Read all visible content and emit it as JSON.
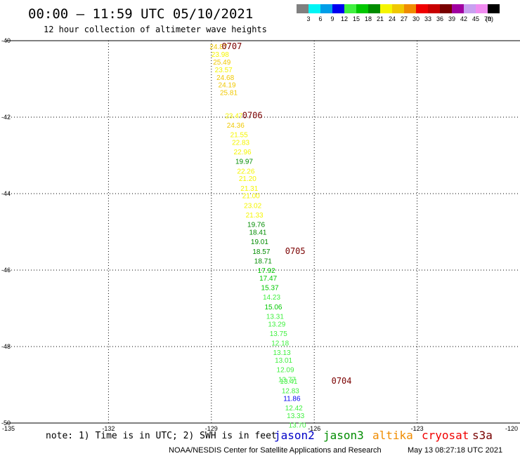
{
  "header": {
    "title": "00:00 – 11:59 UTC 05/10/2021",
    "subtitle": "12 hour collection of altimeter wave heights"
  },
  "colorbar": {
    "unit": "(ft)",
    "bins": [
      {
        "label": "3",
        "color": "#808080"
      },
      {
        "label": "6",
        "color": "#00f5f5"
      },
      {
        "label": "9",
        "color": "#009ee8"
      },
      {
        "label": "12",
        "color": "#0000f0"
      },
      {
        "label": "15",
        "color": "#40f040"
      },
      {
        "label": "18",
        "color": "#00c800"
      },
      {
        "label": "21",
        "color": "#008c00"
      },
      {
        "label": "24",
        "color": "#f5f500"
      },
      {
        "label": "27",
        "color": "#f0c800"
      },
      {
        "label": "30",
        "color": "#f08c00"
      },
      {
        "label": "33",
        "color": "#f00000"
      },
      {
        "label": "36",
        "color": "#c80000"
      },
      {
        "label": "39",
        "color": "#780000"
      },
      {
        "label": "42",
        "color": "#a000a0"
      },
      {
        "label": "45",
        "color": "#c8a0f0"
      },
      {
        "label": "70",
        "color": "#f08cf0"
      },
      {
        "label": "",
        "color": "#000000"
      }
    ]
  },
  "chart_data": {
    "type": "scatter",
    "xlim": [
      -135,
      -120
    ],
    "ylim": [
      -50,
      -40
    ],
    "xticks": [
      -135,
      -132,
      -129,
      -126,
      -123,
      -120
    ],
    "xtick_labels": [
      "-135",
      "-132",
      "-129",
      "-126",
      "-123",
      "-120"
    ],
    "yticks": [
      -40,
      -42,
      -44,
      -46,
      -48,
      -50
    ],
    "ytick_labels": [
      "-40",
      "-42",
      "-44",
      "-46",
      "-48",
      "-50"
    ],
    "grid": true,
    "points": [
      {
        "lon": -129.05,
        "lat": -40.15,
        "label": "24.87",
        "color": "#f0c800"
      },
      {
        "lon": -129.0,
        "lat": -40.35,
        "label": "23.98",
        "color": "#f5f500"
      },
      {
        "lon": -128.95,
        "lat": -40.55,
        "label": "25.49",
        "color": "#f0c800"
      },
      {
        "lon": -128.9,
        "lat": -40.75,
        "label": "23.57",
        "color": "#f5f500"
      },
      {
        "lon": -128.85,
        "lat": -40.95,
        "label": "24.68",
        "color": "#f0c800"
      },
      {
        "lon": -128.8,
        "lat": -41.15,
        "label": "24.19",
        "color": "#f0c800"
      },
      {
        "lon": -128.75,
        "lat": -41.35,
        "label": "25.81",
        "color": "#f0c800"
      },
      {
        "lon": -128.6,
        "lat": -41.95,
        "label": "23.47",
        "color": "#f5f500"
      },
      {
        "lon": -128.55,
        "lat": -42.2,
        "label": "24.36",
        "color": "#f0c800"
      },
      {
        "lon": -128.45,
        "lat": -42.45,
        "label": "21.55",
        "color": "#f5f500"
      },
      {
        "lon": -128.4,
        "lat": -42.65,
        "label": "22.83",
        "color": "#f5f500"
      },
      {
        "lon": -128.35,
        "lat": -42.9,
        "label": "22.96",
        "color": "#f5f500"
      },
      {
        "lon": -128.3,
        "lat": -43.15,
        "label": "19.97",
        "color": "#008c00"
      },
      {
        "lon": -128.25,
        "lat": -43.4,
        "label": "22.26",
        "color": "#f5f500"
      },
      {
        "lon": -128.2,
        "lat": -43.6,
        "label": "21.20",
        "color": "#f5f500"
      },
      {
        "lon": -128.15,
        "lat": -43.85,
        "label": "21.31",
        "color": "#f5f500"
      },
      {
        "lon": -128.1,
        "lat": -44.05,
        "label": "21.00",
        "color": "#f5f500"
      },
      {
        "lon": -128.05,
        "lat": -44.3,
        "label": "23.02",
        "color": "#f5f500"
      },
      {
        "lon": -128.0,
        "lat": -44.55,
        "label": "21.33",
        "color": "#f5f500"
      },
      {
        "lon": -127.95,
        "lat": -44.8,
        "label": "19.76",
        "color": "#008c00"
      },
      {
        "lon": -127.9,
        "lat": -45.0,
        "label": "18.41",
        "color": "#008c00"
      },
      {
        "lon": -127.85,
        "lat": -45.25,
        "label": "19.01",
        "color": "#008c00"
      },
      {
        "lon": -127.8,
        "lat": -45.5,
        "label": "18.57",
        "color": "#008c00"
      },
      {
        "lon": -127.75,
        "lat": -45.75,
        "label": "18.71",
        "color": "#008c00"
      },
      {
        "lon": -127.65,
        "lat": -46.0,
        "label": "17.92",
        "color": "#00c800"
      },
      {
        "lon": -127.6,
        "lat": -46.2,
        "label": "17.47",
        "color": "#00c800"
      },
      {
        "lon": -127.55,
        "lat": -46.45,
        "label": "15.37",
        "color": "#00c800"
      },
      {
        "lon": -127.5,
        "lat": -46.7,
        "label": "14.23",
        "color": "#40f040"
      },
      {
        "lon": -127.45,
        "lat": -46.95,
        "label": "15.06",
        "color": "#00c800"
      },
      {
        "lon": -127.4,
        "lat": -47.2,
        "label": "13.31",
        "color": "#40f040"
      },
      {
        "lon": -127.35,
        "lat": -47.4,
        "label": "13.29",
        "color": "#40f040"
      },
      {
        "lon": -127.3,
        "lat": -47.65,
        "label": "13.75",
        "color": "#40f040"
      },
      {
        "lon": -127.25,
        "lat": -47.9,
        "label": "12.18",
        "color": "#40f040"
      },
      {
        "lon": -127.2,
        "lat": -48.15,
        "label": "13.13",
        "color": "#40f040"
      },
      {
        "lon": -127.15,
        "lat": -48.35,
        "label": "13.01",
        "color": "#40f040"
      },
      {
        "lon": -127.1,
        "lat": -48.6,
        "label": "12.09",
        "color": "#40f040"
      },
      {
        "lon": -127.05,
        "lat": -48.85,
        "label": "13.77",
        "color": "#40f040"
      },
      {
        "lon": -127.0,
        "lat": -48.9,
        "label": "13.41",
        "color": "#40f040"
      },
      {
        "lon": -126.95,
        "lat": -49.15,
        "label": "12.83",
        "color": "#40f040"
      },
      {
        "lon": -126.9,
        "lat": -49.35,
        "label": "11.86",
        "color": "#0000f0"
      },
      {
        "lon": -126.85,
        "lat": -49.6,
        "label": "12.42",
        "color": "#40f040"
      },
      {
        "lon": -126.8,
        "lat": -49.8,
        "label": "13.33",
        "color": "#40f040"
      },
      {
        "lon": -126.75,
        "lat": -50.05,
        "label": "13.70",
        "color": "#40f040"
      }
    ],
    "hour_labels": [
      {
        "lon": -128.7,
        "lat": -40.15,
        "label": "0707"
      },
      {
        "lon": -128.1,
        "lat": -41.95,
        "label": "0706"
      },
      {
        "lon": -126.85,
        "lat": -45.5,
        "label": "0705"
      },
      {
        "lon": -125.5,
        "lat": -48.9,
        "label": "0704"
      }
    ]
  },
  "footer": {
    "note": "note: 1) Time is in UTC; 2) SWH is in feet",
    "satellites": [
      {
        "name": "jason2",
        "color": "#0000c8"
      },
      {
        "name": "jason3",
        "color": "#008c00"
      },
      {
        "name": "altika",
        "color": "#f08c00"
      },
      {
        "name": "cryosat",
        "color": "#f00000"
      },
      {
        "name": "s3a",
        "color": "#780000"
      }
    ],
    "credit": "NOAA/NESDIS Center for Satellite Applications and Research",
    "timestamp": "May 13 08:27:18 UTC 2021"
  }
}
